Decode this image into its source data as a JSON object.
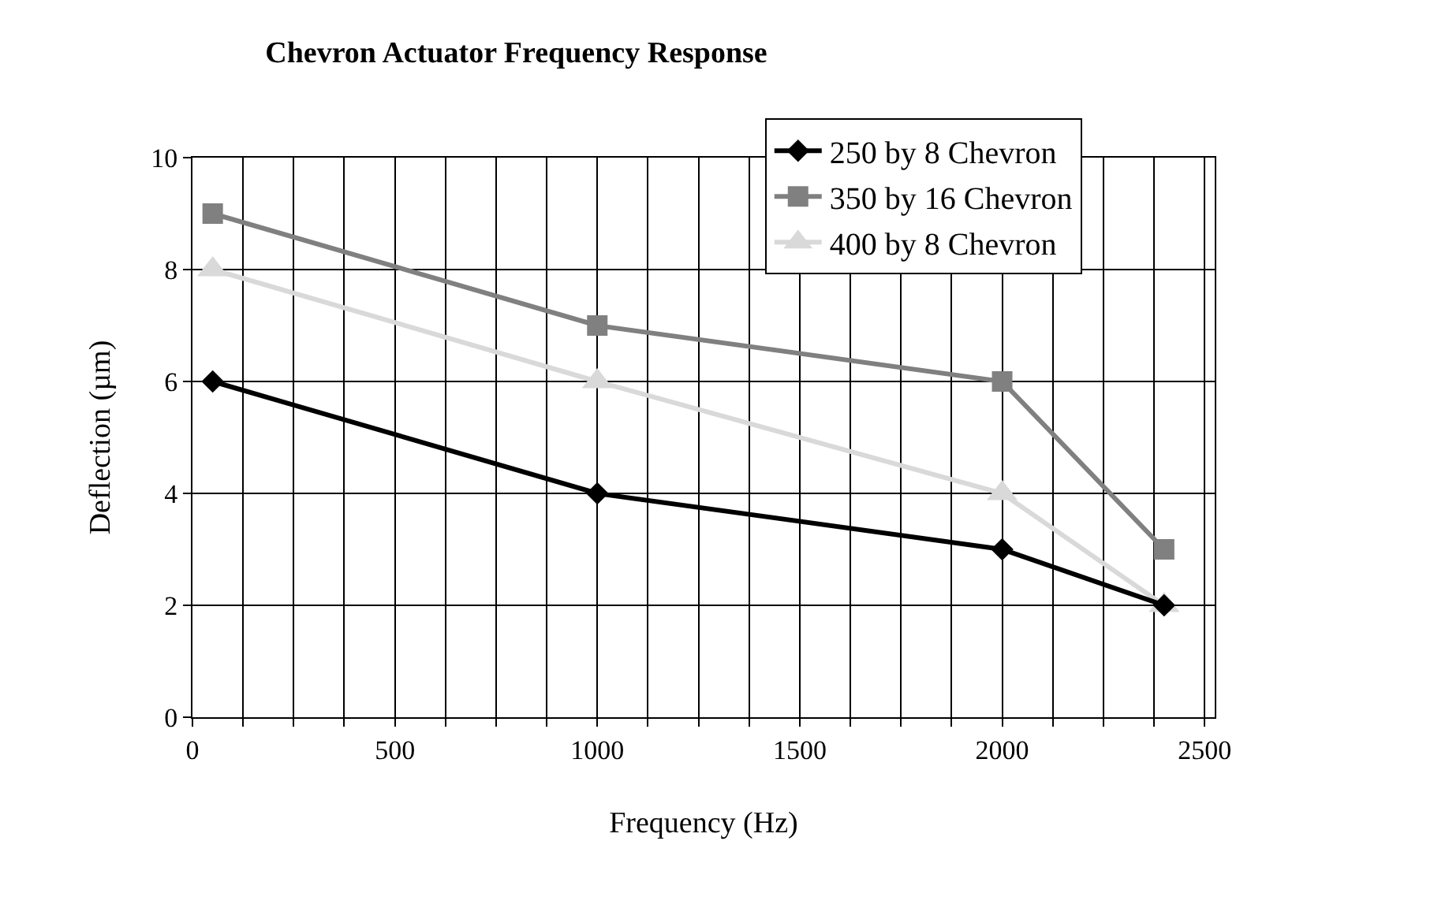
{
  "chart_data": {
    "type": "line",
    "title": "Chevron Actuator Frequency Response",
    "xlabel": "Frequency (Hz)",
    "ylabel": "Deflection (µm)",
    "x": [
      50,
      1000,
      2000,
      2400
    ],
    "series": [
      {
        "name": "250 by 8 Chevron",
        "color": "#000000",
        "marker": "diamond",
        "values": [
          6,
          4,
          3,
          2
        ]
      },
      {
        "name": "350 by 16 Chevron",
        "color": "#808080",
        "marker": "square",
        "values": [
          9,
          7,
          6,
          3
        ]
      },
      {
        "name": "400 by 8 Chevron",
        "color": "#d9d9d9",
        "marker": "triangle",
        "values": [
          8,
          6,
          4,
          2
        ]
      }
    ],
    "xlim": [
      0,
      2525
    ],
    "xticks": [
      0,
      {
        "value": 125,
        "label": null
      },
      {
        "value": 250,
        "label": null
      },
      {
        "value": 375,
        "label": null
      },
      500,
      {
        "value": 625,
        "label": null
      },
      {
        "value": 750,
        "label": null
      },
      {
        "value": 875,
        "label": null
      },
      1000,
      {
        "value": 1125,
        "label": null
      },
      {
        "value": 1250,
        "label": null
      },
      {
        "value": 1375,
        "label": null
      },
      1500,
      {
        "value": 1625,
        "label": null
      },
      {
        "value": 1750,
        "label": null
      },
      {
        "value": 1875,
        "label": null
      },
      2000,
      {
        "value": 2125,
        "label": null
      },
      {
        "value": 2250,
        "label": null
      },
      {
        "value": 2375,
        "label": null
      },
      2500
    ],
    "ylim": [
      0,
      10
    ],
    "yticks": [
      0,
      2,
      4,
      6,
      8,
      10
    ],
    "grid": true,
    "legend": "top right",
    "line_style": "solid"
  }
}
